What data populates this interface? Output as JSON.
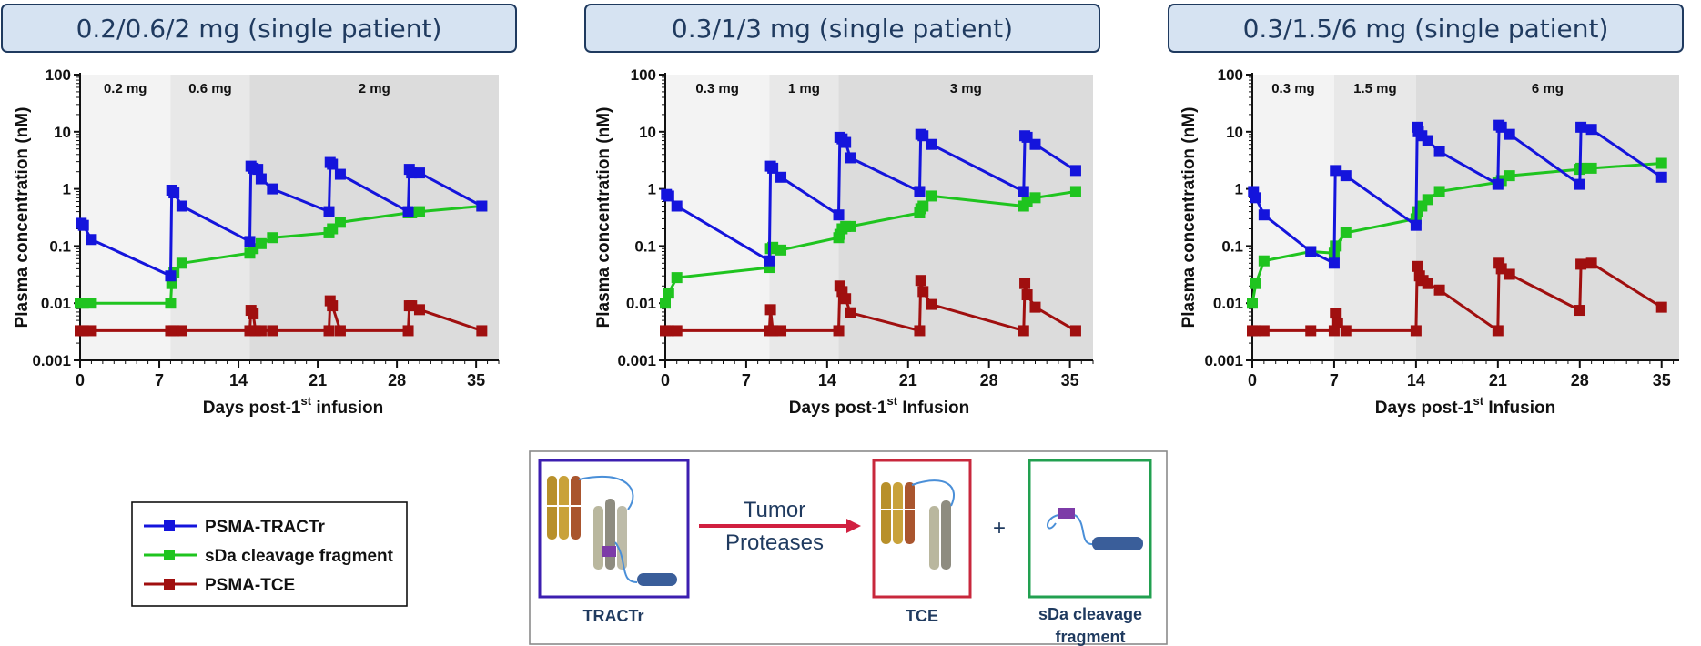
{
  "colors": {
    "tractr": "#1414DC",
    "sda": "#1FC41F",
    "tce": "#A00F0F",
    "title_fill": "#D6E3F2",
    "title_border": "#1F3A5F",
    "title_text": "#1F3A5F",
    "shade1": "#F3F3F3",
    "shade2": "#E8E8E8",
    "shade3": "#DCDCDC"
  },
  "legend": {
    "tractr": "PSMA-TRACTr",
    "sda": "sDa cleavage fragment",
    "tce": "PSMA-TCE"
  },
  "diagram": {
    "arrow_line1": "Tumor",
    "arrow_line2": "Proteases",
    "plus": "+",
    "tractr_label": "TRACTr",
    "tce_label": "TCE",
    "sda_label_line1": "sDa cleavage",
    "sda_label_line2": "fragment"
  },
  "chart_data": [
    {
      "type": "line",
      "title": "0.2/0.6/2 mg (single patient)",
      "ylabel": "Plasma concentration (nM)",
      "xlabel_pre": "Days post-1",
      "xlabel_sup": "st",
      "xlabel_post": " infusion",
      "yscale": "log",
      "ylim": [
        0.001,
        100
      ],
      "yticks": [
        "0.001",
        "0.01",
        "0.1",
        "1",
        "10",
        "100"
      ],
      "xlim": [
        0,
        37
      ],
      "xticks": [
        0,
        7,
        14,
        21,
        28,
        35
      ],
      "dose_periods": [
        {
          "label": "0.2 mg",
          "start": 0,
          "end": 8
        },
        {
          "label": "0.6 mg",
          "start": 8,
          "end": 15
        },
        {
          "label": "2 mg",
          "start": 15,
          "end": 37
        }
      ],
      "series": [
        {
          "name": "PSMA-TRACTr",
          "key": "tractr",
          "points": [
            [
              0.1,
              0.25
            ],
            [
              0.3,
              0.23
            ],
            [
              1,
              0.13
            ],
            [
              8,
              0.03
            ],
            [
              8.1,
              0.95
            ],
            [
              8.3,
              0.85
            ],
            [
              9,
              0.5
            ],
            [
              15,
              0.12
            ],
            [
              15.1,
              2.5
            ],
            [
              15.3,
              2.3
            ],
            [
              15.7,
              2.2
            ],
            [
              16,
              1.5
            ],
            [
              17,
              1.0
            ],
            [
              22,
              0.4
            ],
            [
              22.1,
              2.9
            ],
            [
              22.3,
              2.7
            ],
            [
              23,
              1.8
            ],
            [
              29,
              0.4
            ],
            [
              29.1,
              2.2
            ],
            [
              29.3,
              1.9
            ],
            [
              30,
              1.9
            ],
            [
              35.5,
              0.5
            ]
          ]
        },
        {
          "name": "sDa cleavage fragment",
          "key": "sda",
          "points": [
            [
              0,
              0.01
            ],
            [
              0.3,
              0.01
            ],
            [
              1,
              0.01
            ],
            [
              8,
              0.01
            ],
            [
              8.1,
              0.022
            ],
            [
              8.3,
              0.035
            ],
            [
              9,
              0.05
            ],
            [
              15,
              0.075
            ],
            [
              15.3,
              0.09
            ],
            [
              16,
              0.11
            ],
            [
              17,
              0.14
            ],
            [
              22,
              0.17
            ],
            [
              22.3,
              0.2
            ],
            [
              23,
              0.26
            ],
            [
              29,
              0.38
            ],
            [
              29.3,
              0.38
            ],
            [
              30,
              0.4
            ],
            [
              35.5,
              0.5
            ]
          ]
        },
        {
          "name": "PSMA-TCE",
          "key": "tce",
          "points": [
            [
              0,
              0.0033
            ],
            [
              0.3,
              0.0033
            ],
            [
              1,
              0.0033
            ],
            [
              8,
              0.0033
            ],
            [
              8.3,
              0.0033
            ],
            [
              9,
              0.0033
            ],
            [
              15,
              0.0033
            ],
            [
              15.1,
              0.0075
            ],
            [
              15.3,
              0.0065
            ],
            [
              15.5,
              0.0033
            ],
            [
              16,
              0.0033
            ],
            [
              17,
              0.0033
            ],
            [
              22,
              0.0033
            ],
            [
              22.1,
              0.011
            ],
            [
              22.3,
              0.009
            ],
            [
              23,
              0.0033
            ],
            [
              29,
              0.0033
            ],
            [
              29.1,
              0.009
            ],
            [
              29.3,
              0.009
            ],
            [
              30,
              0.0077
            ],
            [
              35.5,
              0.0033
            ]
          ]
        }
      ]
    },
    {
      "type": "line",
      "title": "0.3/1/3 mg (single patient)",
      "ylabel": "Plasma concentration (nM)",
      "xlabel_pre": "Days post-1",
      "xlabel_sup": "st",
      "xlabel_post": " Infusion",
      "yscale": "log",
      "ylim": [
        0.001,
        100
      ],
      "yticks": [
        "0.001",
        "0.01",
        "0.1",
        "1",
        "10",
        "100"
      ],
      "xlim": [
        0,
        37
      ],
      "xticks": [
        0,
        7,
        14,
        21,
        28,
        35
      ],
      "dose_periods": [
        {
          "label": "0.3 mg",
          "start": 0,
          "end": 9
        },
        {
          "label": "1 mg",
          "start": 9,
          "end": 15
        },
        {
          "label": "3 mg",
          "start": 15,
          "end": 37
        }
      ],
      "series": [
        {
          "name": "PSMA-TRACTr",
          "key": "tractr",
          "points": [
            [
              0.1,
              0.8
            ],
            [
              0.3,
              0.75
            ],
            [
              1,
              0.5
            ],
            [
              9,
              0.055
            ],
            [
              9.1,
              2.5
            ],
            [
              9.3,
              2.3
            ],
            [
              10,
              1.6
            ],
            [
              15,
              0.35
            ],
            [
              15.1,
              8.0
            ],
            [
              15.3,
              7.5
            ],
            [
              15.6,
              6.5
            ],
            [
              16,
              3.5
            ],
            [
              22,
              0.9
            ],
            [
              22.1,
              9.0
            ],
            [
              22.3,
              8.5
            ],
            [
              23,
              6.0
            ],
            [
              31,
              0.9
            ],
            [
              31.1,
              8.5
            ],
            [
              31.3,
              8.0
            ],
            [
              32,
              6.0
            ],
            [
              35.5,
              2.1
            ]
          ]
        },
        {
          "name": "sDa cleavage fragment",
          "key": "sda",
          "points": [
            [
              0,
              0.01
            ],
            [
              0.3,
              0.015
            ],
            [
              1,
              0.028
            ],
            [
              9,
              0.042
            ],
            [
              9.1,
              0.09
            ],
            [
              9.3,
              0.095
            ],
            [
              10,
              0.085
            ],
            [
              15,
              0.14
            ],
            [
              15.1,
              0.16
            ],
            [
              15.3,
              0.2
            ],
            [
              15.6,
              0.22
            ],
            [
              16,
              0.22
            ],
            [
              22,
              0.38
            ],
            [
              22.1,
              0.45
            ],
            [
              22.3,
              0.5
            ],
            [
              23,
              0.75
            ],
            [
              31,
              0.5
            ],
            [
              31.3,
              0.6
            ],
            [
              32,
              0.7
            ],
            [
              35.5,
              0.9
            ]
          ]
        },
        {
          "name": "PSMA-TCE",
          "key": "tce",
          "points": [
            [
              0,
              0.0033
            ],
            [
              0.3,
              0.0033
            ],
            [
              1,
              0.0033
            ],
            [
              9,
              0.0033
            ],
            [
              9.1,
              0.0077
            ],
            [
              9.3,
              0.0033
            ],
            [
              10,
              0.0033
            ],
            [
              15,
              0.0033
            ],
            [
              15.1,
              0.02
            ],
            [
              15.3,
              0.016
            ],
            [
              15.6,
              0.012
            ],
            [
              16,
              0.0068
            ],
            [
              22,
              0.0033
            ],
            [
              22.1,
              0.025
            ],
            [
              22.3,
              0.016
            ],
            [
              23,
              0.0095
            ],
            [
              31,
              0.0033
            ],
            [
              31.1,
              0.022
            ],
            [
              31.3,
              0.014
            ],
            [
              32,
              0.0085
            ],
            [
              35.5,
              0.0033
            ]
          ]
        }
      ]
    },
    {
      "type": "line",
      "title": "0.3/1.5/6 mg (single patient)",
      "ylabel": "Plasma concentration (nM)",
      "xlabel_pre": "Days post-1",
      "xlabel_sup": "st",
      "xlabel_post": " Infusion",
      "yscale": "log",
      "ylim": [
        0.001,
        100
      ],
      "yticks": [
        "0.001",
        "0.01",
        "0.1",
        "1",
        "10",
        "100"
      ],
      "xlim": [
        0,
        36.5
      ],
      "xticks": [
        0,
        7,
        14,
        21,
        28,
        35
      ],
      "dose_periods": [
        {
          "label": "0.3 mg",
          "start": 0,
          "end": 7
        },
        {
          "label": "1.5 mg",
          "start": 7,
          "end": 14
        },
        {
          "label": "6 mg",
          "start": 14,
          "end": 36.5
        }
      ],
      "series": [
        {
          "name": "PSMA-TRACTr",
          "key": "tractr",
          "points": [
            [
              0.1,
              0.9
            ],
            [
              0.3,
              0.7
            ],
            [
              1,
              0.35
            ],
            [
              5,
              0.08
            ],
            [
              7,
              0.05
            ],
            [
              7.1,
              2.1
            ],
            [
              8,
              1.7
            ],
            [
              14,
              0.23
            ],
            [
              14.1,
              12.0
            ],
            [
              14.2,
              10.0
            ],
            [
              14.5,
              8.5
            ],
            [
              15,
              7.0
            ],
            [
              16,
              4.5
            ],
            [
              21,
              1.2
            ],
            [
              21.1,
              13.0
            ],
            [
              21.3,
              12.0
            ],
            [
              22,
              9.0
            ],
            [
              28,
              1.2
            ],
            [
              28.1,
              12.0
            ],
            [
              29,
              11.0
            ],
            [
              35,
              1.6
            ]
          ]
        },
        {
          "name": "sDa cleavage fragment",
          "key": "sda",
          "points": [
            [
              0,
              0.01
            ],
            [
              0.3,
              0.022
            ],
            [
              1,
              0.055
            ],
            [
              5,
              0.08
            ],
            [
              7,
              0.075
            ],
            [
              7.1,
              0.1
            ],
            [
              8,
              0.17
            ],
            [
              14,
              0.3
            ],
            [
              14.1,
              0.4
            ],
            [
              14.5,
              0.5
            ],
            [
              15,
              0.65
            ],
            [
              16,
              0.9
            ],
            [
              21,
              1.3
            ],
            [
              21.3,
              1.4
            ],
            [
              22,
              1.7
            ],
            [
              28,
              2.2
            ],
            [
              28.1,
              2.3
            ],
            [
              29,
              2.3
            ],
            [
              35,
              2.8
            ]
          ]
        },
        {
          "name": "PSMA-TCE",
          "key": "tce",
          "points": [
            [
              0,
              0.0033
            ],
            [
              0.3,
              0.0033
            ],
            [
              1,
              0.0033
            ],
            [
              5,
              0.0033
            ],
            [
              7,
              0.0033
            ],
            [
              7.1,
              0.0067
            ],
            [
              7.3,
              0.0045
            ],
            [
              8,
              0.0033
            ],
            [
              14,
              0.0033
            ],
            [
              14.1,
              0.044
            ],
            [
              14.3,
              0.03
            ],
            [
              14.6,
              0.025
            ],
            [
              15,
              0.022
            ],
            [
              16,
              0.017
            ],
            [
              21,
              0.0033
            ],
            [
              21.1,
              0.05
            ],
            [
              21.3,
              0.04
            ],
            [
              22,
              0.032
            ],
            [
              28,
              0.0075
            ],
            [
              28.1,
              0.048
            ],
            [
              29,
              0.05
            ],
            [
              35,
              0.0085
            ]
          ]
        }
      ]
    }
  ]
}
